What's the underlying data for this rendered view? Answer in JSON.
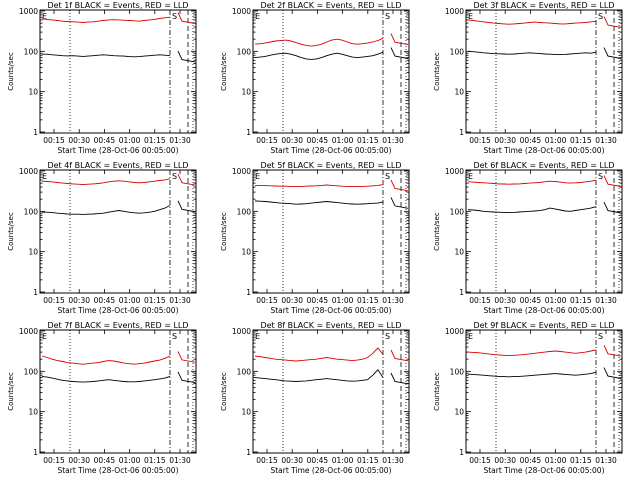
{
  "chart_data": [
    {
      "type": "line",
      "title": "Det 1f BLACK = Events, RED = LLD",
      "xlabel": "Start Time (28-Oct-06 00:05:00)",
      "ylabel": "Counts/sec",
      "x_ticks": [
        "00:15",
        "00:30",
        "00:45",
        "01:00",
        "01:15",
        "01:30"
      ],
      "y_ticks": [
        "1",
        "10",
        "100",
        "1000"
      ],
      "yscale": "log",
      "ylim": [
        1,
        1000
      ],
      "markers": {
        "E": "E",
        "S": "S"
      },
      "series": [
        {
          "color": "#000000",
          "values": [
            85,
            85,
            82,
            80,
            78,
            77,
            78,
            76,
            75,
            76,
            78,
            80,
            82,
            80,
            78,
            77,
            76,
            74,
            73,
            74,
            76,
            78,
            80,
            82,
            80,
            78
          ]
        },
        {
          "color": "#dd0000",
          "values": [
            640,
            620,
            600,
            580,
            560,
            550,
            540,
            530,
            520,
            530,
            540,
            560,
            580,
            600,
            610,
            600,
            590,
            580,
            570,
            560,
            580,
            600,
            620,
            650,
            680,
            700
          ]
        }
      ]
    },
    {
      "type": "line",
      "title": "Det 2f BLACK = Events, RED = LLD",
      "xlabel": "Start Time (28-Oct-06 00:05:00)",
      "ylabel": "Counts/sec",
      "x_ticks": [
        "00:15",
        "00:30",
        "00:45",
        "01:00",
        "01:15",
        "01:30"
      ],
      "y_ticks": [
        "1",
        "10",
        "100",
        "1000"
      ],
      "yscale": "log",
      "ylim": [
        1,
        1000
      ],
      "markers": {
        "E": "E",
        "S": "S"
      },
      "series": [
        {
          "color": "#000000",
          "values": [
            70,
            72,
            75,
            80,
            85,
            88,
            90,
            85,
            78,
            70,
            65,
            63,
            65,
            70,
            78,
            85,
            90,
            85,
            78,
            72,
            70,
            72,
            75,
            78,
            85,
            95
          ]
        },
        {
          "color": "#dd0000",
          "values": [
            150,
            155,
            160,
            170,
            180,
            185,
            190,
            180,
            165,
            150,
            140,
            135,
            140,
            150,
            170,
            190,
            200,
            190,
            170,
            155,
            150,
            155,
            160,
            170,
            185,
            210
          ]
        }
      ]
    },
    {
      "type": "line",
      "title": "Det 3f BLACK = Events, RED = LLD",
      "xlabel": "Start Time (28-Oct-06 00:05:00)",
      "ylabel": "Counts/sec",
      "x_ticks": [
        "00:15",
        "00:30",
        "00:45",
        "01:00",
        "01:15",
        "01:30"
      ],
      "y_ticks": [
        "1",
        "10",
        "100",
        "1000"
      ],
      "yscale": "log",
      "ylim": [
        1,
        1000
      ],
      "markers": {
        "E": "E",
        "S": "S"
      },
      "series": [
        {
          "color": "#000000",
          "values": [
            100,
            98,
            95,
            92,
            90,
            88,
            87,
            86,
            85,
            86,
            88,
            90,
            92,
            90,
            88,
            86,
            85,
            84,
            83,
            84,
            86,
            88,
            90,
            92,
            90,
            95
          ]
        },
        {
          "color": "#dd0000",
          "values": [
            600,
            580,
            560,
            540,
            520,
            500,
            490,
            480,
            470,
            480,
            490,
            500,
            520,
            530,
            520,
            510,
            500,
            490,
            480,
            480,
            490,
            500,
            510,
            520,
            540,
            560
          ]
        }
      ]
    },
    {
      "type": "line",
      "title": "Det 4f BLACK = Events, RED = LLD",
      "xlabel": "Start Time (28-Oct-06 00:05:00)",
      "ylabel": "Counts/sec",
      "x_ticks": [
        "00:15",
        "00:30",
        "00:45",
        "01:00",
        "01:15",
        "01:30"
      ],
      "y_ticks": [
        "1",
        "10",
        "100",
        "1000"
      ],
      "yscale": "log",
      "ylim": [
        1,
        1000
      ],
      "markers": {
        "E": "E",
        "S": "S"
      },
      "series": [
        {
          "color": "#000000",
          "values": [
            95,
            95,
            93,
            90,
            88,
            86,
            85,
            85,
            84,
            85,
            86,
            88,
            90,
            95,
            100,
            105,
            100,
            95,
            92,
            90,
            92,
            95,
            100,
            110,
            120,
            140
          ]
        },
        {
          "color": "#dd0000",
          "values": [
            560,
            550,
            540,
            520,
            500,
            490,
            480,
            470,
            460,
            470,
            480,
            490,
            510,
            540,
            560,
            570,
            560,
            540,
            520,
            510,
            520,
            540,
            560,
            580,
            600,
            640
          ]
        }
      ]
    },
    {
      "type": "line",
      "title": "Det 5f BLACK = Events, RED = LLD",
      "xlabel": "Start Time (28-Oct-06 00:05:00)",
      "ylabel": "Counts/sec",
      "x_ticks": [
        "00:15",
        "00:30",
        "00:45",
        "01:00",
        "01:15",
        "01:30"
      ],
      "y_ticks": [
        "1",
        "10",
        "100",
        "1000"
      ],
      "yscale": "log",
      "ylim": [
        1,
        1000
      ],
      "markers": {
        "E": "E",
        "S": "S"
      },
      "series": [
        {
          "color": "#000000",
          "values": [
            180,
            178,
            175,
            170,
            165,
            160,
            158,
            155,
            150,
            152,
            155,
            160,
            165,
            170,
            175,
            170,
            165,
            160,
            155,
            152,
            150,
            152,
            155,
            158,
            160,
            170
          ]
        },
        {
          "color": "#dd0000",
          "values": [
            440,
            440,
            435,
            430,
            425,
            420,
            420,
            415,
            410,
            415,
            420,
            425,
            430,
            440,
            450,
            440,
            430,
            420,
            415,
            410,
            410,
            415,
            420,
            430,
            440,
            460
          ]
        }
      ]
    },
    {
      "type": "line",
      "title": "Det 6f BLACK = Events, RED = LLD",
      "xlabel": "Start Time (28-Oct-06 00:05:00)",
      "ylabel": "Counts/sec",
      "x_ticks": [
        "00:15",
        "00:30",
        "00:45",
        "01:00",
        "01:15",
        "01:30"
      ],
      "y_ticks": [
        "1",
        "10",
        "100",
        "1000"
      ],
      "yscale": "log",
      "ylim": [
        1,
        1000
      ],
      "markers": {
        "E": "E",
        "S": "S"
      },
      "series": [
        {
          "color": "#000000",
          "values": [
            110,
            108,
            105,
            100,
            98,
            96,
            95,
            94,
            93,
            94,
            96,
            98,
            100,
            102,
            104,
            110,
            120,
            115,
            108,
            102,
            100,
            105,
            110,
            115,
            120,
            130
          ]
        },
        {
          "color": "#dd0000",
          "values": [
            540,
            530,
            520,
            510,
            500,
            490,
            480,
            475,
            470,
            475,
            480,
            490,
            500,
            510,
            520,
            540,
            560,
            550,
            530,
            510,
            500,
            510,
            520,
            540,
            560,
            590
          ]
        }
      ]
    },
    {
      "type": "line",
      "title": "Det 7f BLACK = Events, RED = LLD",
      "xlabel": "Start Time (28-Oct-06 00:05:00)",
      "ylabel": "Counts/sec",
      "x_ticks": [
        "00:15",
        "00:30",
        "00:45",
        "01:00",
        "01:15",
        "01:30"
      ],
      "y_ticks": [
        "1",
        "10",
        "100",
        "1000"
      ],
      "yscale": "log",
      "ylim": [
        1,
        1000
      ],
      "markers": {
        "E": "E",
        "S": "S"
      },
      "series": [
        {
          "color": "#000000",
          "values": [
            75,
            72,
            68,
            64,
            60,
            58,
            56,
            55,
            54,
            55,
            56,
            58,
            60,
            62,
            60,
            58,
            56,
            55,
            55,
            56,
            58,
            60,
            62,
            65,
            68,
            75
          ]
        },
        {
          "color": "#dd0000",
          "values": [
            240,
            220,
            200,
            185,
            175,
            165,
            160,
            155,
            150,
            155,
            160,
            165,
            175,
            185,
            180,
            170,
            160,
            155,
            150,
            155,
            160,
            170,
            180,
            190,
            210,
            240
          ]
        }
      ]
    },
    {
      "type": "line",
      "title": "Det 8f BLACK = Events, RED = LLD",
      "xlabel": "Start Time (28-Oct-06 00:05:00)",
      "ylabel": "Counts/sec",
      "x_ticks": [
        "00:15",
        "00:30",
        "00:45",
        "01:00",
        "01:15",
        "01:30"
      ],
      "y_ticks": [
        "1",
        "10",
        "100",
        "1000"
      ],
      "yscale": "log",
      "ylim": [
        1,
        1000
      ],
      "markers": {
        "E": "E",
        "S": "S"
      },
      "series": [
        {
          "color": "#000000",
          "values": [
            70,
            68,
            66,
            64,
            62,
            60,
            58,
            57,
            56,
            57,
            58,
            60,
            62,
            64,
            66,
            64,
            62,
            60,
            58,
            57,
            58,
            60,
            62,
            80,
            110,
            70
          ]
        },
        {
          "color": "#dd0000",
          "values": [
            240,
            230,
            220,
            210,
            200,
            195,
            190,
            185,
            180,
            185,
            190,
            195,
            200,
            210,
            220,
            210,
            200,
            195,
            190,
            185,
            190,
            200,
            220,
            280,
            380,
            260
          ]
        }
      ]
    },
    {
      "type": "line",
      "title": "Det 9f BLACK = Events, RED = LLD",
      "xlabel": "Start Time (28-Oct-06 00:05:00)",
      "ylabel": "Counts/sec",
      "x_ticks": [
        "00:15",
        "00:30",
        "00:45",
        "01:00",
        "01:15",
        "01:30"
      ],
      "y_ticks": [
        "1",
        "10",
        "100",
        "1000"
      ],
      "yscale": "log",
      "ylim": [
        1,
        1000
      ],
      "markers": {
        "E": "E",
        "S": "S"
      },
      "series": [
        {
          "color": "#000000",
          "values": [
            85,
            84,
            82,
            80,
            78,
            76,
            75,
            74,
            73,
            74,
            75,
            76,
            78,
            80,
            82,
            84,
            86,
            88,
            86,
            84,
            82,
            80,
            82,
            85,
            88,
            95
          ]
        },
        {
          "color": "#dd0000",
          "values": [
            300,
            295,
            290,
            280,
            270,
            260,
            255,
            250,
            245,
            250,
            255,
            260,
            270,
            280,
            290,
            300,
            310,
            320,
            310,
            300,
            290,
            280,
            290,
            300,
            320,
            340
          ]
        }
      ]
    }
  ]
}
